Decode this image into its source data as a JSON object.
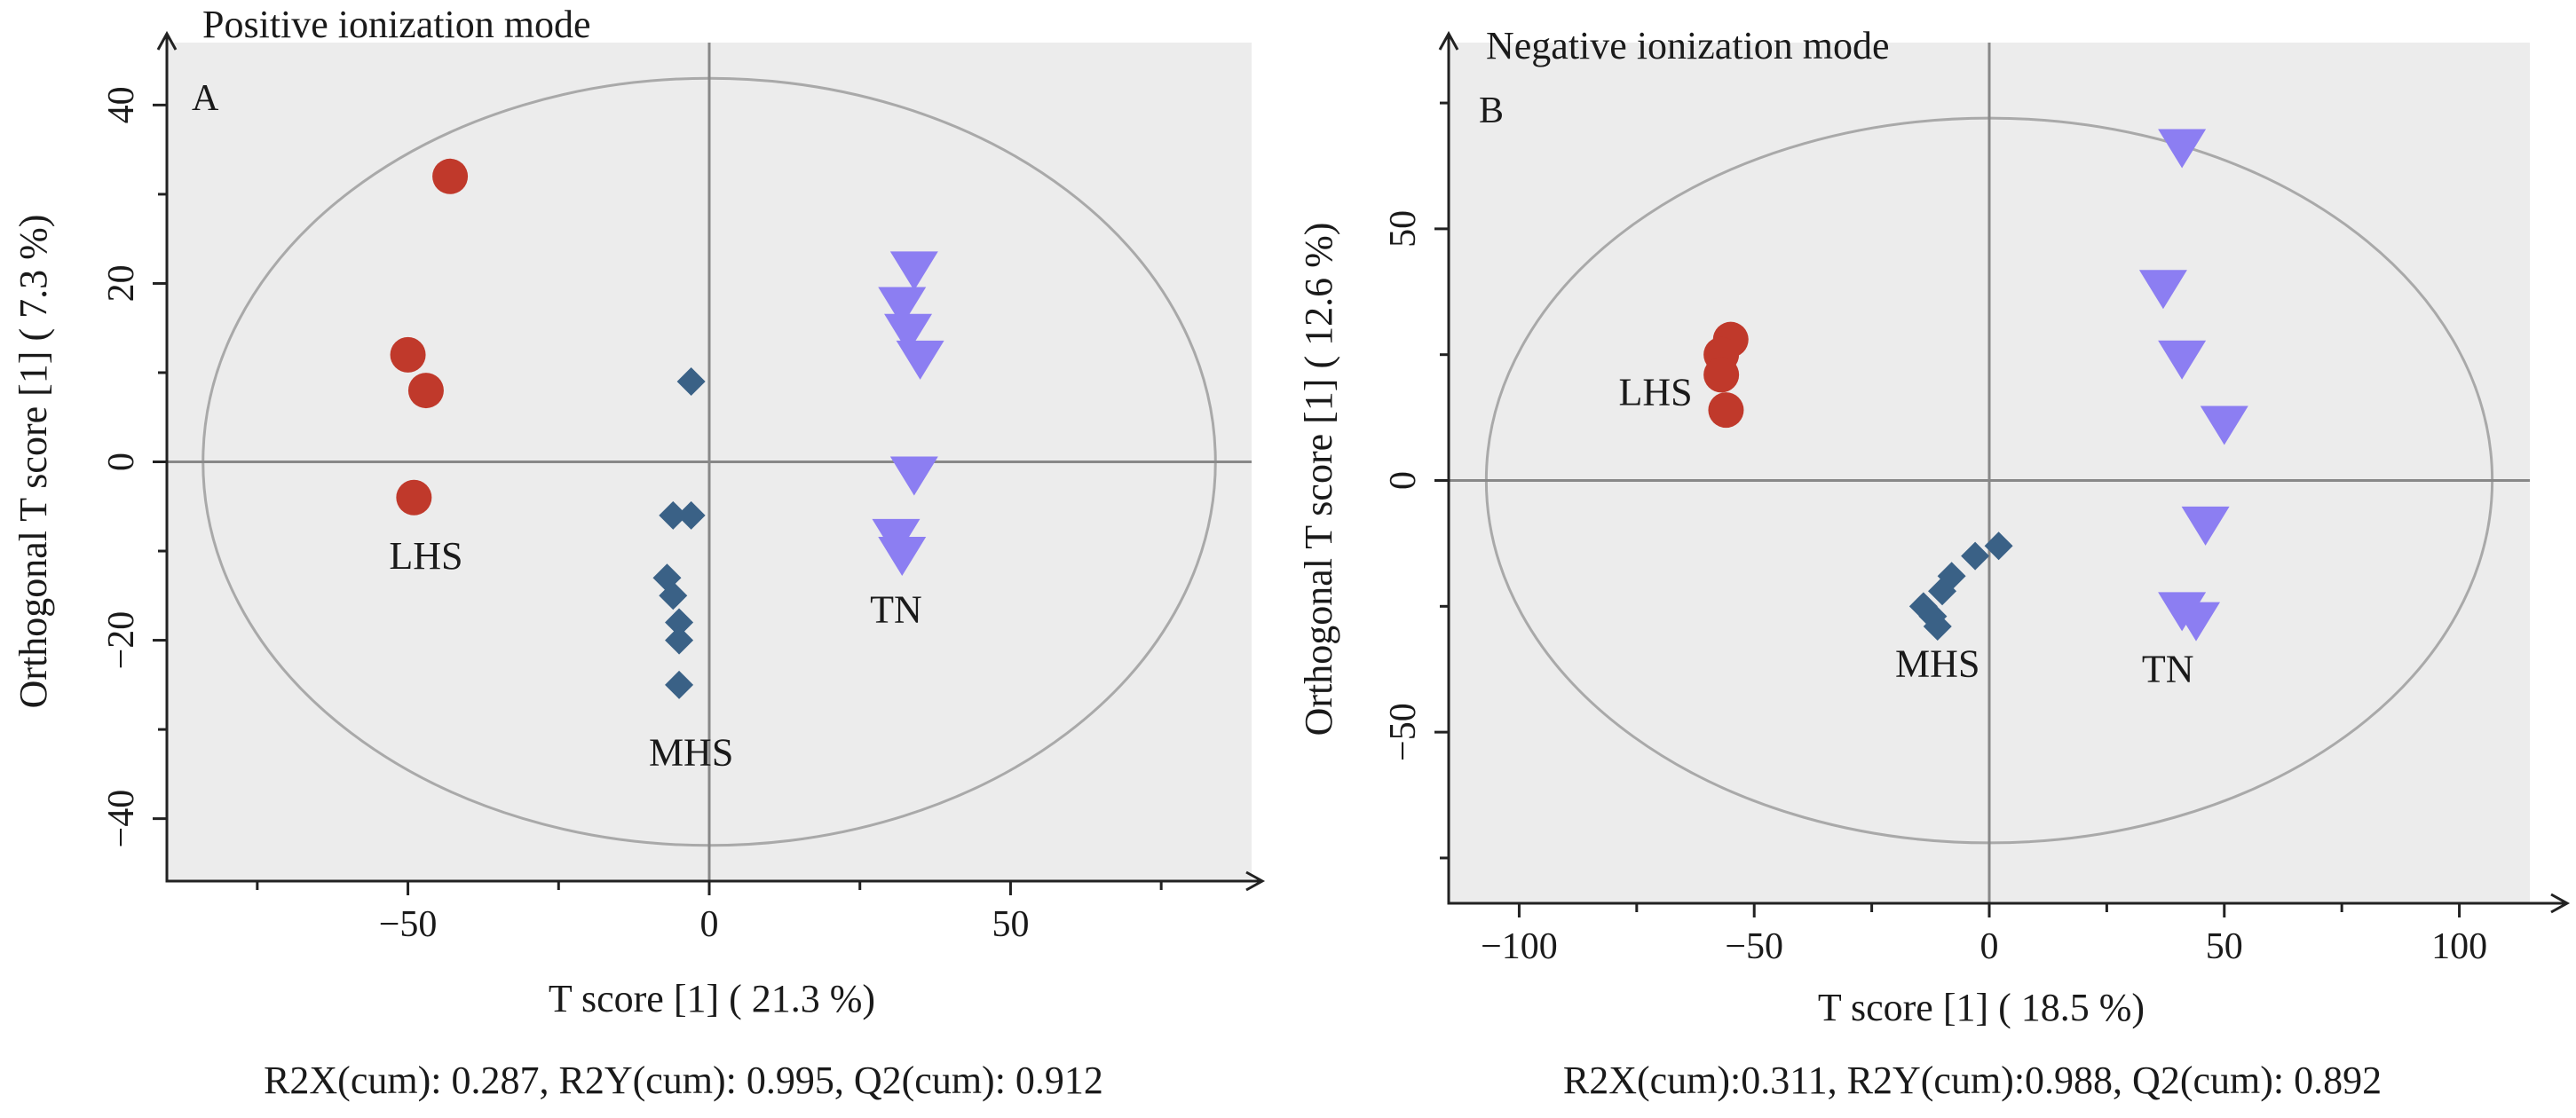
{
  "colors": {
    "panel_bg": "#ececec",
    "ellipse": "#a9a9a9",
    "axis": "#222222",
    "refline": "#888888",
    "LHS": "#c0392b",
    "MHS": "#3a6186",
    "TN": "#8c7ef2"
  },
  "chart_data": [
    {
      "type": "scatter",
      "panel_label": "A",
      "title": "Positive ionization mode",
      "xlabel": "T score [1] ( 21.3 %)",
      "ylabel": "Orthogonal T score [1] ( 7.3 %)",
      "footer": "R2X(cum): 0.287, R2Y(cum): 0.995, Q2(cum): 0.912",
      "xlim": [
        -90,
        90
      ],
      "ylim": [
        -47,
        47
      ],
      "xticks": [
        -50,
        0,
        50
      ],
      "yticks": [
        -40,
        -20,
        0,
        20,
        40
      ],
      "xtick_labels": [
        "−50",
        "0",
        "50"
      ],
      "ytick_labels": [
        "−40",
        "−20",
        "0",
        "20",
        "40"
      ],
      "ellipse": {
        "rx": 84,
        "ry": 43
      },
      "series": [
        {
          "name": "LHS",
          "marker": "circle",
          "color": "#c0392b",
          "points": [
            [
              -43,
              32
            ],
            [
              -50,
              12
            ],
            [
              -47,
              8
            ],
            [
              -49,
              -4
            ]
          ]
        },
        {
          "name": "MHS",
          "marker": "diamond",
          "color": "#3a6186",
          "points": [
            [
              -3,
              9
            ],
            [
              -6,
              -6
            ],
            [
              -3,
              -6
            ],
            [
              -7,
              -13
            ],
            [
              -6,
              -15
            ],
            [
              -5,
              -18
            ],
            [
              -5,
              -20
            ],
            [
              -5,
              -25
            ]
          ]
        },
        {
          "name": "TN",
          "marker": "triangle-down",
          "color": "#8c7ef2",
          "points": [
            [
              34,
              22
            ],
            [
              32,
              18
            ],
            [
              33,
              15
            ],
            [
              35,
              12
            ],
            [
              34,
              -1
            ],
            [
              31,
              -8
            ],
            [
              32,
              -10
            ]
          ]
        }
      ],
      "annotations": [
        {
          "text": "LHS",
          "x": -47,
          "y": -12
        },
        {
          "text": "MHS",
          "x": -3,
          "y": -34
        },
        {
          "text": "TN",
          "x": 31,
          "y": -18
        }
      ]
    },
    {
      "type": "scatter",
      "panel_label": "B",
      "title": "Negative ionization mode",
      "xlabel": "T score [1] ( 18.5 %)",
      "ylabel": "Orthogonal T score [1] ( 12.6 %)",
      "footer": "R2X(cum):0.311, R2Y(cum):0.988, Q2(cum): 0.892",
      "xlim": [
        -115,
        115
      ],
      "ylim": [
        -84,
        87
      ],
      "xticks": [
        -100,
        -50,
        0,
        50,
        100
      ],
      "yticks": [
        -50,
        0,
        50
      ],
      "xtick_labels": [
        "−100",
        "−50",
        "0",
        "50",
        "100"
      ],
      "ytick_labels": [
        "−50",
        "0",
        "50"
      ],
      "ellipse": {
        "rx": 107,
        "ry": 72
      },
      "series": [
        {
          "name": "LHS",
          "marker": "circle",
          "color": "#c0392b",
          "points": [
            [
              -55,
              28
            ],
            [
              -57,
              25
            ],
            [
              -57,
              21
            ],
            [
              -56,
              14
            ]
          ]
        },
        {
          "name": "MHS",
          "marker": "diamond",
          "color": "#3a6186",
          "points": [
            [
              2,
              -13
            ],
            [
              -3,
              -15
            ],
            [
              -8,
              -19
            ],
            [
              -10,
              -22
            ],
            [
              -14,
              -25
            ],
            [
              -12,
              -27
            ],
            [
              -11,
              -29
            ]
          ]
        },
        {
          "name": "TN",
          "marker": "triangle-down",
          "color": "#8c7ef2",
          "points": [
            [
              41,
              67
            ],
            [
              37,
              39
            ],
            [
              41,
              25
            ],
            [
              50,
              12
            ],
            [
              46,
              -8
            ],
            [
              41,
              -25
            ],
            [
              44,
              -27
            ]
          ]
        }
      ],
      "annotations": [
        {
          "text": "LHS",
          "x": -71,
          "y": 15
        },
        {
          "text": "MHS",
          "x": -11,
          "y": -39
        },
        {
          "text": "TN",
          "x": 38,
          "y": -40
        }
      ]
    }
  ]
}
